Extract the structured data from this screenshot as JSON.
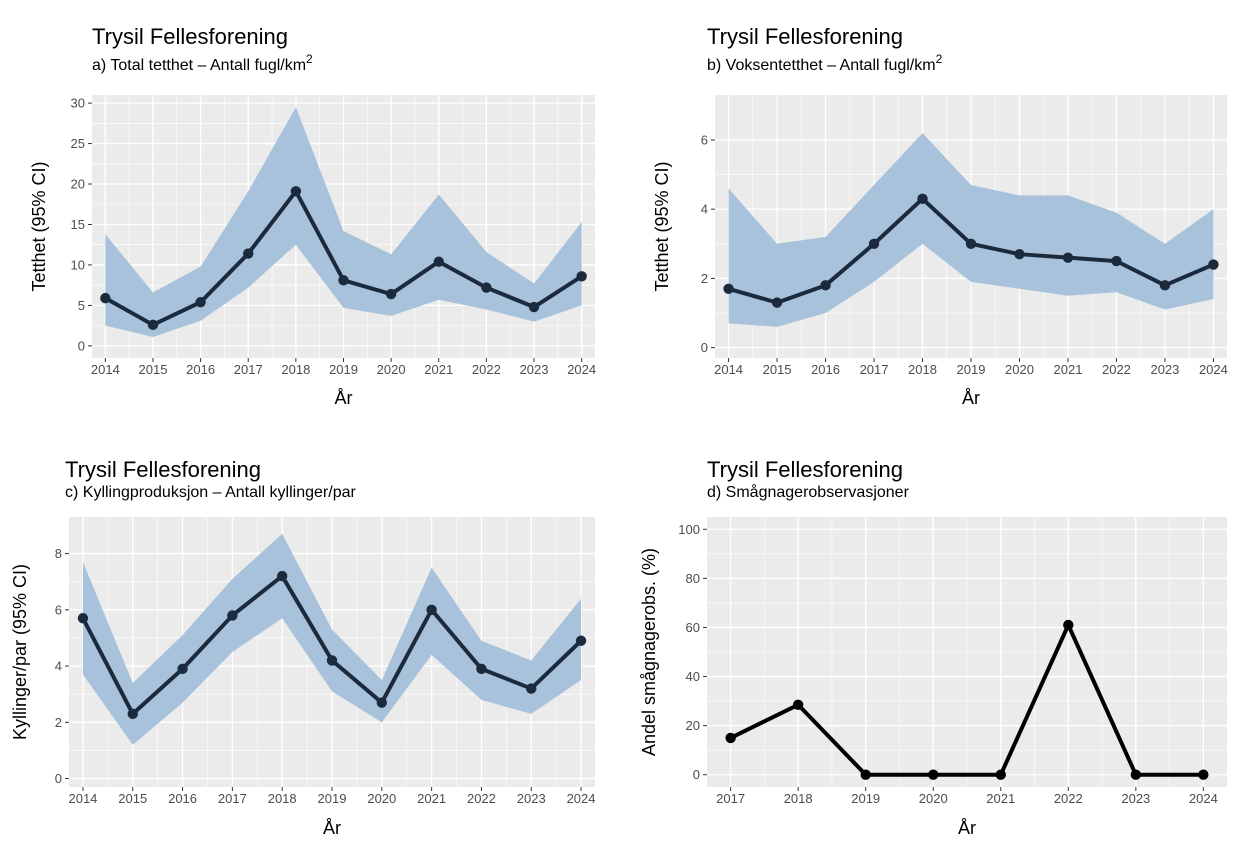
{
  "figure": {
    "panels": [
      {
        "title": "Trysil Fellesforening",
        "subtitle_text": "a) Total tetthet – Antall fugl/km",
        "subtitle_sup": "2"
      },
      {
        "title": "Trysil Fellesforening",
        "subtitle_text": "b) Voksentetthet – Antall fugl/km",
        "subtitle_sup": "2"
      },
      {
        "title": "Trysil Fellesforening",
        "subtitle_text": "c) Kyllingproduksjon – Antall kyllinger/par",
        "subtitle_sup": ""
      },
      {
        "title": "Trysil Fellesforening",
        "subtitle_text": "d) Smågnagerobservasjoner",
        "subtitle_sup": ""
      }
    ]
  },
  "colors": {
    "panel_background": "#ebebeb",
    "grid_line": "#ffffff",
    "ribbon": "#a9c2db",
    "line_series": "#1b2b3d",
    "line_rodent": "#000000",
    "tick_text": "#4d4d4d"
  },
  "chart_data": [
    {
      "type": "line",
      "title": "Trysil Fellesforening",
      "subtitle": "a) Total tetthet – Antall fugl/km²",
      "xlabel": "År",
      "ylabel": "Tetthet (95% CI)",
      "x": [
        2014,
        2015,
        2016,
        2017,
        2018,
        2019,
        2020,
        2021,
        2022,
        2023,
        2024
      ],
      "y": [
        5.9,
        2.6,
        5.4,
        11.4,
        19.1,
        8.1,
        6.4,
        10.4,
        7.2,
        4.8,
        8.6
      ],
      "ci_lower": [
        2.5,
        1.1,
        3.1,
        7.2,
        12.5,
        4.7,
        3.7,
        5.7,
        4.5,
        3.0,
        5.0
      ],
      "ci_upper": [
        13.8,
        6.6,
        9.8,
        19.1,
        29.5,
        14.2,
        11.3,
        18.7,
        11.6,
        7.7,
        15.3
      ],
      "ylim": [
        -1.5,
        31
      ],
      "yticks": [
        0,
        5,
        10,
        15,
        20,
        25,
        30
      ],
      "xlim": [
        2013.72,
        2024.28
      ],
      "grid": true
    },
    {
      "type": "line",
      "title": "Trysil Fellesforening",
      "subtitle": "b) Voksentetthet – Antall fugl/km²",
      "xlabel": "År",
      "ylabel": "Tetthet (95% CI)",
      "x": [
        2014,
        2015,
        2016,
        2017,
        2018,
        2019,
        2020,
        2021,
        2022,
        2023,
        2024
      ],
      "y": [
        1.7,
        1.3,
        1.8,
        3.0,
        4.3,
        3.0,
        2.7,
        2.6,
        2.5,
        1.8,
        2.4
      ],
      "ci_lower": [
        0.7,
        0.6,
        1.0,
        1.9,
        3.0,
        1.9,
        1.7,
        1.5,
        1.6,
        1.1,
        1.4
      ],
      "ci_upper": [
        4.6,
        3.0,
        3.2,
        4.7,
        6.2,
        4.7,
        4.4,
        4.4,
        3.9,
        3.0,
        4.0
      ],
      "ylim": [
        -0.3,
        7.3
      ],
      "yticks": [
        0,
        2,
        4,
        6
      ],
      "xlim": [
        2013.72,
        2024.28
      ],
      "grid": true
    },
    {
      "type": "line",
      "title": "Trysil Fellesforening",
      "subtitle": "c) Kyllingproduksjon – Antall kyllinger/par",
      "xlabel": "År",
      "ylabel": "Kyllinger/par (95% CI)",
      "x": [
        2014,
        2015,
        2016,
        2017,
        2018,
        2019,
        2020,
        2021,
        2022,
        2023,
        2024
      ],
      "y": [
        5.7,
        2.3,
        3.9,
        5.8,
        7.2,
        4.2,
        2.7,
        6.0,
        3.9,
        3.2,
        4.9
      ],
      "ci_lower": [
        3.7,
        1.2,
        2.7,
        4.5,
        5.7,
        3.1,
        2.0,
        4.4,
        2.8,
        2.3,
        3.5
      ],
      "ci_upper": [
        7.7,
        3.4,
        5.1,
        7.1,
        8.7,
        5.3,
        3.5,
        7.5,
        4.9,
        4.2,
        6.4
      ],
      "ylim": [
        -0.3,
        9.3
      ],
      "yticks": [
        0,
        2,
        4,
        6,
        8
      ],
      "xlim": [
        2013.72,
        2024.28
      ],
      "grid": true
    },
    {
      "type": "line",
      "title": "Trysil Fellesforening",
      "subtitle": "d) Smågnagerobservasjoner",
      "xlabel": "År",
      "ylabel": "Andel smågnagerobs. (%)",
      "x": [
        2017,
        2018,
        2019,
        2020,
        2021,
        2022,
        2023,
        2024
      ],
      "y": [
        15,
        28.5,
        0,
        0,
        0,
        61,
        0,
        0
      ],
      "ylim": [
        -5,
        105
      ],
      "yticks": [
        0,
        20,
        40,
        60,
        80,
        100
      ],
      "xlim": [
        2016.65,
        2024.35
      ],
      "grid": true
    }
  ]
}
